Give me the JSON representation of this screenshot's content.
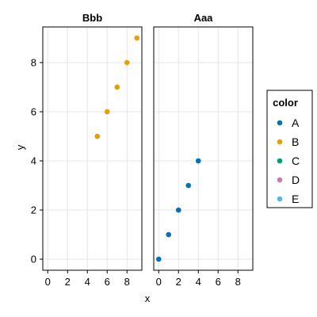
{
  "chart_data": {
    "type": "scatter",
    "xlabel": "x",
    "ylabel": "y",
    "xlim": [
      -0.5,
      9.5
    ],
    "ylim": [
      -0.45,
      9.45
    ],
    "xticks": [
      0,
      2,
      4,
      6,
      8
    ],
    "yticks": [
      0,
      2,
      4,
      6,
      8
    ],
    "grid": true,
    "legend": {
      "title": "color",
      "placement": "right",
      "entries": [
        {
          "label": "A",
          "color": "#0072B2"
        },
        {
          "label": "B",
          "color": "#E69F00"
        },
        {
          "label": "C",
          "color": "#009E73"
        },
        {
          "label": "D",
          "color": "#CC79A7"
        },
        {
          "label": "E",
          "color": "#56B4E9"
        }
      ]
    },
    "facets": [
      {
        "title": "Bbb",
        "series": [
          {
            "group": "B",
            "color": "#E69F00",
            "points": [
              [
                5,
                5
              ],
              [
                6,
                6
              ],
              [
                7,
                7
              ],
              [
                8,
                8
              ],
              [
                9,
                9
              ]
            ]
          }
        ]
      },
      {
        "title": "Aaa",
        "series": [
          {
            "group": "A",
            "color": "#0072B2",
            "points": [
              [
                0,
                0
              ],
              [
                1,
                1
              ],
              [
                2,
                2
              ],
              [
                3,
                3
              ],
              [
                4,
                4
              ]
            ]
          }
        ]
      }
    ]
  }
}
